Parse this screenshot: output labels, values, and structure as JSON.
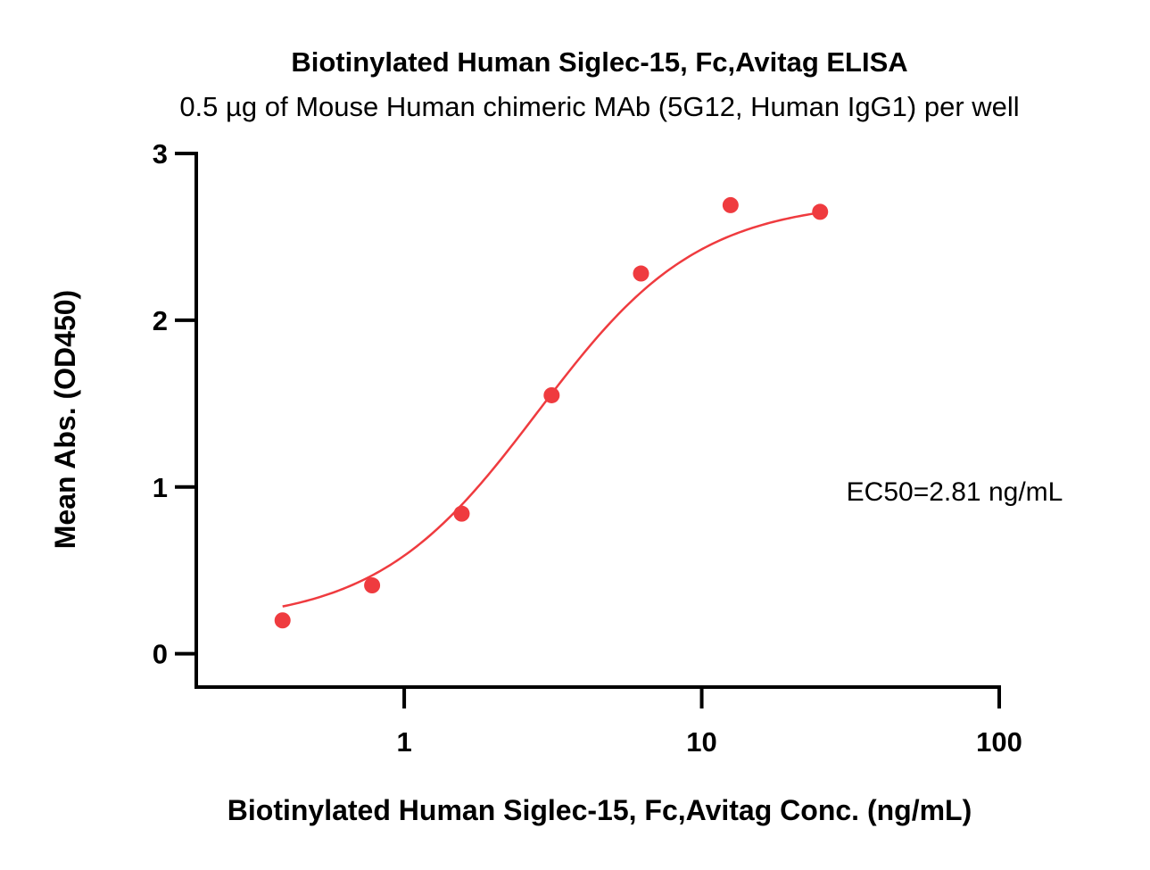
{
  "chart_data": {
    "type": "scatter",
    "title": "Biotinylated Human Siglec-15, Fc,Avitag ELISA",
    "subtitle": "0.5 µg of Mouse Human chimeric MAb (5G12, Human IgG1) per well",
    "xlabel": "Biotinylated Human Siglec-15, Fc,Avitag Conc. (ng/mL)",
    "ylabel": "Mean Abs. (OD450)",
    "x_scale": "log",
    "xlim": [
      0.2,
      100
    ],
    "ylim": [
      -0.2,
      3
    ],
    "x_ticks": [
      1,
      10,
      100
    ],
    "x_tick_labels": [
      "1",
      "10",
      "100"
    ],
    "y_ticks": [
      0,
      1,
      2,
      3
    ],
    "y_tick_labels": [
      "0",
      "1",
      "2",
      "3"
    ],
    "grid": false,
    "color": "#ef3b3f",
    "series": [
      {
        "x": [
          0.39,
          0.78,
          1.56,
          3.13,
          6.25,
          12.5,
          25
        ],
        "y": [
          0.2,
          0.41,
          0.84,
          1.55,
          2.28,
          2.69,
          2.65
        ]
      }
    ],
    "fit": {
      "bottom": 0.18,
      "top": 2.72,
      "ec50": 2.81,
      "hill": 1.6
    },
    "annotation": "EC50=2.81 ng/mL"
  }
}
